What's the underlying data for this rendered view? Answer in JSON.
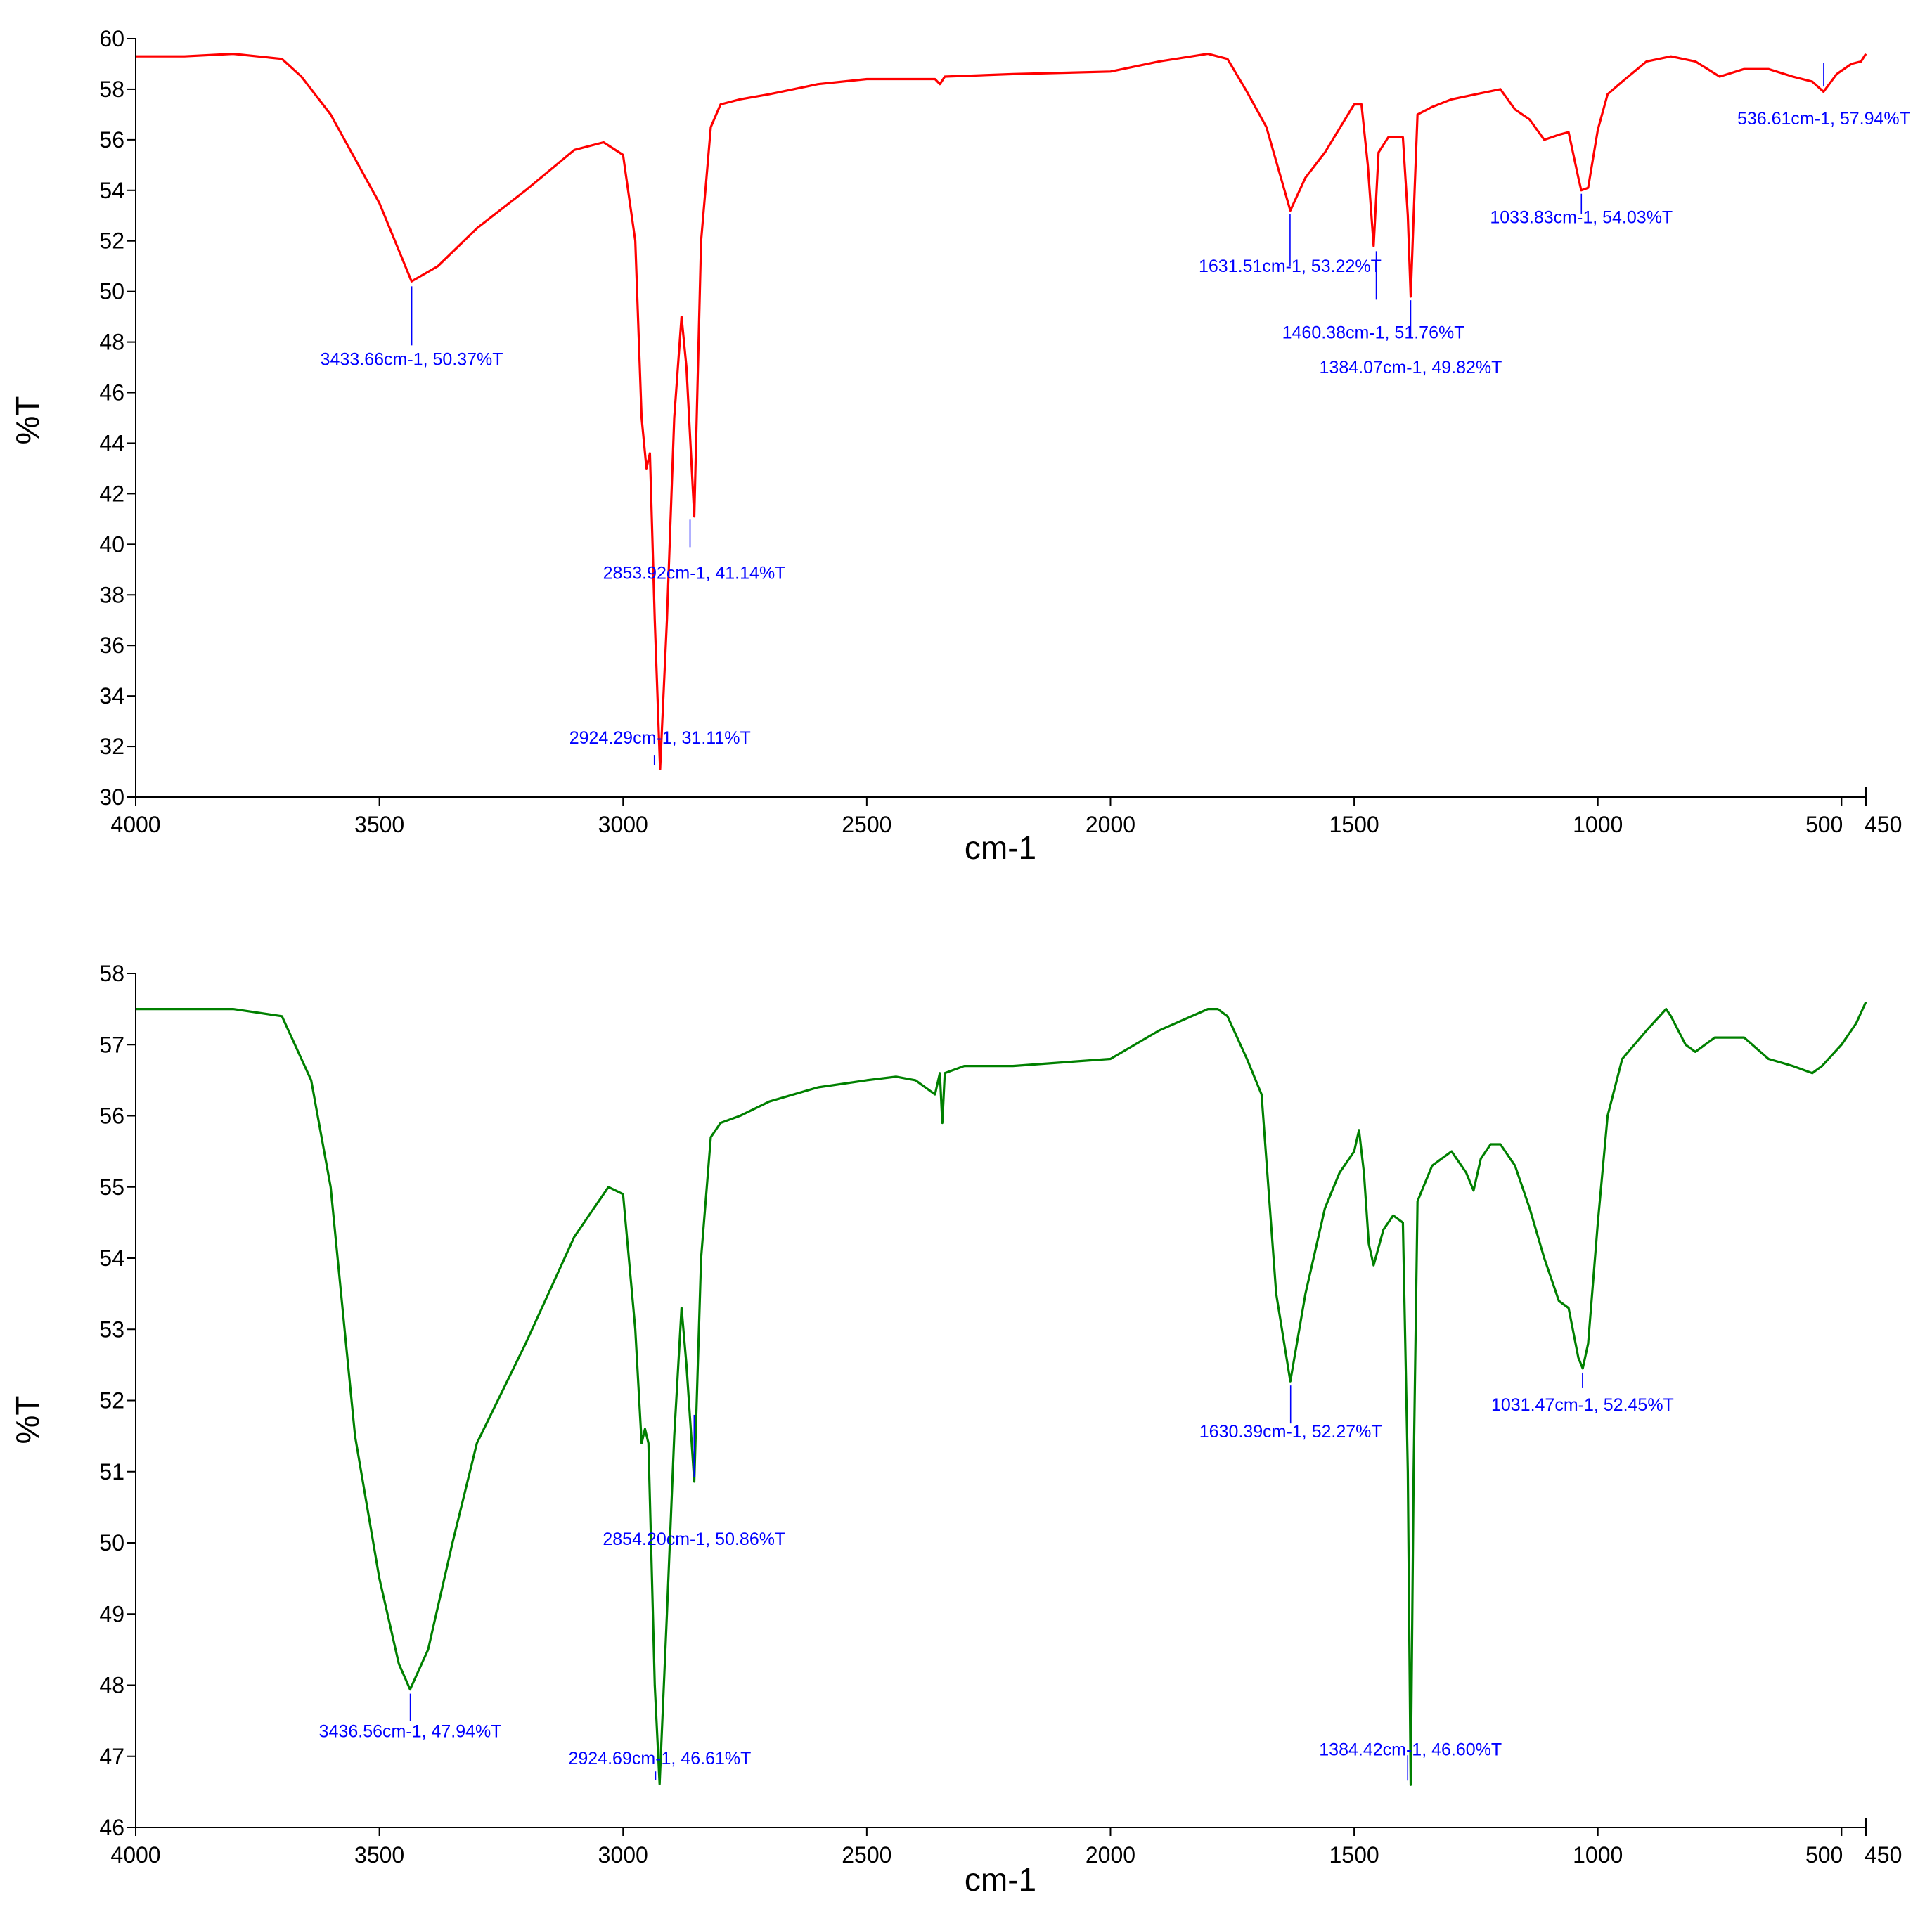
{
  "chart_data": [
    {
      "type": "line",
      "xlabel": "cm-1",
      "ylabel": "%T",
      "xlim": [
        4000,
        450
      ],
      "ylim": [
        30,
        60
      ],
      "x_ticks": [
        4000,
        3500,
        3000,
        2500,
        2000,
        1500,
        1000,
        500,
        450
      ],
      "x_tick_labels": [
        "4000",
        "3500",
        "3000",
        "2500",
        "2000",
        "1500",
        "1000",
        "500",
        "450"
      ],
      "y_ticks": [
        30,
        32,
        34,
        36,
        38,
        40,
        42,
        44,
        46,
        48,
        50,
        52,
        54,
        56,
        58,
        60
      ],
      "y_tick_labels": [
        "30",
        "32",
        "34",
        "36",
        "38",
        "40",
        "42",
        "44",
        "46",
        "48",
        "50",
        "52",
        "54",
        "56",
        "58",
        "60"
      ],
      "grid": false,
      "line_color": "#ff0000",
      "annotation_color": "#0000ff",
      "series": [
        {
          "x": [
            4000,
            3900,
            3800,
            3700,
            3660,
            3600,
            3500,
            3434,
            3380,
            3300,
            3200,
            3100,
            3040,
            3000,
            2975,
            2962,
            2952,
            2945,
            2935,
            2924,
            2910,
            2895,
            2880,
            2870,
            2854,
            2840,
            2820,
            2800,
            2760,
            2700,
            2600,
            2500,
            2360,
            2350,
            2340,
            2200,
            2000,
            1900,
            1800,
            1760,
            1720,
            1680,
            1631,
            1600,
            1560,
            1500,
            1485,
            1472,
            1460,
            1450,
            1430,
            1400,
            1390,
            1384,
            1378,
            1370,
            1340,
            1300,
            1250,
            1200,
            1170,
            1140,
            1110,
            1080,
            1060,
            1040,
            1034,
            1020,
            1000,
            980,
            950,
            900,
            850,
            800,
            750,
            700,
            650,
            600,
            560,
            537,
            510,
            480,
            460,
            450
          ],
          "y": [
            59.3,
            59.3,
            59.4,
            59.2,
            58.5,
            57.0,
            53.5,
            50.4,
            51.0,
            52.5,
            54.0,
            55.6,
            55.9,
            55.4,
            52.0,
            45.0,
            43.0,
            43.6,
            37.0,
            31.1,
            37.0,
            45.0,
            49.0,
            47.0,
            41.1,
            52.0,
            56.5,
            57.4,
            57.6,
            57.8,
            58.2,
            58.4,
            58.4,
            58.2,
            58.5,
            58.6,
            58.7,
            59.1,
            59.4,
            59.2,
            57.9,
            56.5,
            53.2,
            54.5,
            55.5,
            57.4,
            57.4,
            55.0,
            51.8,
            55.5,
            56.1,
            56.1,
            53.0,
            49.8,
            53.0,
            57.0,
            57.3,
            57.6,
            57.8,
            58.0,
            57.2,
            56.8,
            56.0,
            56.2,
            56.3,
            54.5,
            54.0,
            54.1,
            56.4,
            57.8,
            58.3,
            59.1,
            59.3,
            59.1,
            58.5,
            58.8,
            58.8,
            58.5,
            58.3,
            57.9,
            58.6,
            59.0,
            59.1,
            59.4
          ]
        }
      ],
      "annotations": [
        {
          "x": 3433.66,
          "y": 50.37,
          "text": "3433.66cm-1, 50.37%T"
        },
        {
          "x": 2924.29,
          "y": 31.11,
          "text": "2924.29cm-1, 31.11%T"
        },
        {
          "x": 2853.92,
          "y": 41.14,
          "text": "2853.92cm-1, 41.14%T"
        },
        {
          "x": 1631.51,
          "y": 53.22,
          "text": "1631.51cm-1, 53.22%T"
        },
        {
          "x": 1460.38,
          "y": 51.76,
          "text": "1460.38cm-1, 51.76%T"
        },
        {
          "x": 1384.07,
          "y": 49.82,
          "text": "1384.07cm-1, 49.82%T"
        },
        {
          "x": 1033.83,
          "y": 54.03,
          "text": "1033.83cm-1, 54.03%T"
        },
        {
          "x": 536.61,
          "y": 57.94,
          "text": "536.61cm-1, 57.94%T"
        }
      ]
    },
    {
      "type": "line",
      "xlabel": "cm-1",
      "ylabel": "%T",
      "xlim": [
        4000,
        450
      ],
      "ylim": [
        46,
        58
      ],
      "x_ticks": [
        4000,
        3500,
        3000,
        2500,
        2000,
        1500,
        1000,
        500,
        450
      ],
      "x_tick_labels": [
        "4000",
        "3500",
        "3000",
        "2500",
        "2000",
        "1500",
        "1000",
        "500",
        "450"
      ],
      "y_ticks": [
        46,
        47,
        48,
        49,
        50,
        51,
        52,
        53,
        54,
        55,
        56,
        57,
        58
      ],
      "y_tick_labels": [
        "46",
        "47",
        "48",
        "49",
        "50",
        "51",
        "52",
        "53",
        "54",
        "55",
        "56",
        "57",
        "58"
      ],
      "grid": false,
      "line_color": "#008000",
      "annotation_color": "#0000ff",
      "series": [
        {
          "x": [
            4000,
            3900,
            3800,
            3700,
            3680,
            3640,
            3600,
            3550,
            3500,
            3460,
            3437,
            3400,
            3350,
            3300,
            3200,
            3100,
            3030,
            3000,
            2975,
            2962,
            2955,
            2948,
            2935,
            2925,
            2910,
            2895,
            2880,
            2870,
            2854,
            2840,
            2820,
            2800,
            2760,
            2700,
            2600,
            2500,
            2440,
            2400,
            2360,
            2350,
            2345,
            2340,
            2300,
            2200,
            2000,
            1900,
            1800,
            1780,
            1760,
            1720,
            1690,
            1660,
            1631,
            1600,
            1560,
            1530,
            1500,
            1490,
            1480,
            1470,
            1460,
            1440,
            1420,
            1400,
            1390,
            1384,
            1378,
            1370,
            1340,
            1300,
            1270,
            1255,
            1240,
            1220,
            1200,
            1170,
            1140,
            1110,
            1080,
            1060,
            1040,
            1031,
            1020,
            1000,
            980,
            950,
            900,
            860,
            850,
            820,
            800,
            760,
            700,
            650,
            600,
            560,
            540,
            500,
            470,
            450
          ],
          "y": [
            57.5,
            57.5,
            57.5,
            57.4,
            57.1,
            56.5,
            55.0,
            51.5,
            49.5,
            48.3,
            47.94,
            48.5,
            50.0,
            51.4,
            52.8,
            54.3,
            55.0,
            54.9,
            53.0,
            51.4,
            51.6,
            51.4,
            48.0,
            46.61,
            49.0,
            51.5,
            53.3,
            52.5,
            50.86,
            54.0,
            55.7,
            55.9,
            56.0,
            56.2,
            56.4,
            56.5,
            56.55,
            56.5,
            56.3,
            56.6,
            55.9,
            56.6,
            56.7,
            56.7,
            56.8,
            57.2,
            57.5,
            57.5,
            57.4,
            56.8,
            56.3,
            53.5,
            52.27,
            53.5,
            54.7,
            55.2,
            55.5,
            55.8,
            55.2,
            54.2,
            53.9,
            54.4,
            54.6,
            54.5,
            51.0,
            46.6,
            51.0,
            54.8,
            55.3,
            55.5,
            55.2,
            54.95,
            55.4,
            55.6,
            55.6,
            55.3,
            54.7,
            54.0,
            53.4,
            53.3,
            52.6,
            52.45,
            52.8,
            54.5,
            56.0,
            56.8,
            57.2,
            57.5,
            57.4,
            57.0,
            56.9,
            57.1,
            57.1,
            56.8,
            56.7,
            56.6,
            56.7,
            57.0,
            57.3,
            57.6
          ]
        }
      ],
      "annotations": [
        {
          "x": 3436.56,
          "y": 47.94,
          "text": "3436.56cm-1, 47.94%T"
        },
        {
          "x": 2924.69,
          "y": 46.61,
          "text": "2924.69cm-1, 46.61%T"
        },
        {
          "x": 2854.2,
          "y": 50.86,
          "text": "2854.20cm-1, 50.86%T"
        },
        {
          "x": 1630.39,
          "y": 52.27,
          "text": "1630.39cm-1, 52.27%T"
        },
        {
          "x": 1384.42,
          "y": 46.6,
          "text": "1384.42cm-1, 46.60%T"
        },
        {
          "x": 1031.47,
          "y": 52.45,
          "text": "1031.47cm-1, 52.45%T"
        }
      ]
    }
  ]
}
